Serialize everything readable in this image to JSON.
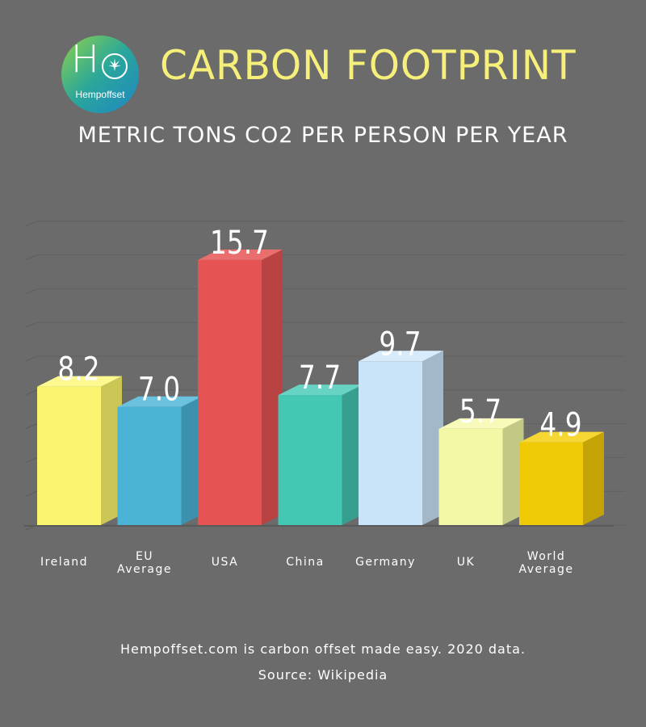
{
  "header": {
    "logo_letter": "H",
    "logo_name": "Hempoffset",
    "title": "CARBON FOOTPRINT",
    "subtitle": "METRIC TONS CO2 PER PERSON PER YEAR"
  },
  "footer": {
    "line1": "Hempoffset.com is carbon offset made easy. 2020 data.",
    "line2": "Source: Wikipedia"
  },
  "chart_data": {
    "type": "bar",
    "title": "CARBON FOOTPRINT",
    "subtitle": "METRIC TONS CO2 PER PERSON PER YEAR",
    "categories": [
      [
        "Ireland"
      ],
      [
        "EU",
        "Average"
      ],
      [
        "USA"
      ],
      [
        "China"
      ],
      [
        "Germany"
      ],
      [
        "UK"
      ],
      [
        "World",
        "Average"
      ]
    ],
    "values": [
      8.2,
      7.0,
      15.7,
      7.7,
      9.7,
      5.7,
      4.9
    ],
    "value_labels": [
      "8.2",
      "7.0",
      "15.7",
      "7.7",
      "9.7",
      "5.7",
      "4.9"
    ],
    "colors": [
      "#fbf46e",
      "#4bb3d6",
      "#e55353",
      "#44c7b3",
      "#c9e3f8",
      "#f3f8a6",
      "#f1ca07"
    ],
    "side_colors": [
      "#cbc655",
      "#3b91ae",
      "#b94343",
      "#369f8f",
      "#a3b8c9",
      "#c4c885",
      "#c3a305"
    ],
    "top_colors": [
      "#fdf88f",
      "#6ac2df",
      "#ea6e6e",
      "#67d3c3",
      "#d8ebfa",
      "#f7fab8",
      "#f5d633"
    ],
    "ylim": [
      0,
      18
    ],
    "grid": true,
    "legend": "none"
  }
}
